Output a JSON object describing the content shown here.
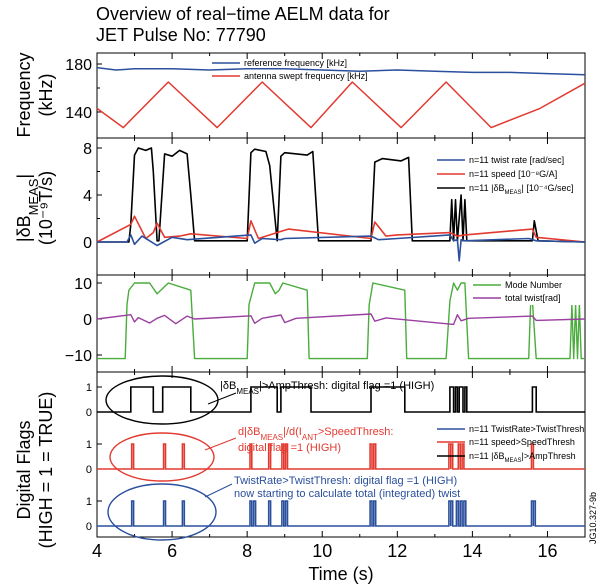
{
  "figure": {
    "title_line1": "Overview of real−time AELM data for",
    "title_line2": "JET Pulse No: 77790",
    "xlabel": "Time (s)",
    "x_ticks": [
      "4",
      "6",
      "8",
      "10",
      "12",
      "14",
      "16"
    ],
    "figure_id": "JG10.327-9b"
  },
  "chart_data": [
    {
      "type": "line",
      "panel": "frequency",
      "ylabel_line1": "Frequency",
      "ylabel_line2": "(kHz)",
      "ylim": [
        120,
        190
      ],
      "y_ticks": [
        "140",
        "180"
      ],
      "series": [
        {
          "name": "reference frequency [kHz]",
          "color": "#2a4f9c",
          "x": [
            4.0,
            4.5,
            5.0,
            6.0,
            7.0,
            8.0,
            9.0,
            10.0,
            11.0,
            12.0,
            13.0,
            14.0,
            15.0,
            16.0,
            17.0
          ],
          "y": [
            177,
            175,
            176,
            176,
            175,
            176,
            176,
            175,
            174,
            175,
            174,
            173,
            173,
            172,
            171
          ]
        },
        {
          "name": "antenna swept frequency [kHz]",
          "color": "#e23a30",
          "x": [
            4.0,
            4.7,
            5.9,
            7.2,
            8.4,
            9.7,
            10.8,
            12.1,
            13.3,
            14.5,
            15.8,
            17.0
          ],
          "y": [
            143,
            127,
            165,
            127,
            165,
            127,
            165,
            127,
            165,
            127,
            143,
            164
          ]
        }
      ]
    },
    {
      "type": "line",
      "panel": "twist",
      "ylabel_line1": "|δB_MEAS|",
      "ylabel_line2": "(10⁻⁹T/s)",
      "ylim": [
        -1.5,
        9
      ],
      "y_ticks": [
        "0",
        "4",
        "8"
      ],
      "series": [
        {
          "name": "n=11 twist rate [rad/sec]",
          "color": "#2a4f9c",
          "x": [
            4.0,
            4.8,
            4.9,
            5.0,
            5.2,
            5.4,
            5.6,
            6.0,
            6.4,
            8.1,
            8.2,
            8.4,
            8.9,
            9.0,
            11.3,
            11.5,
            12.0,
            13.4,
            13.5,
            13.6,
            13.65,
            13.7,
            13.8,
            15.5,
            15.7,
            17.0
          ],
          "y": [
            0,
            0,
            0.6,
            -0.2,
            0.5,
            0.1,
            -0.3,
            0.4,
            0.2,
            0.6,
            -0.1,
            0.3,
            0.2,
            0.3,
            0.5,
            0.2,
            0.3,
            0.6,
            0.1,
            0.2,
            -1.6,
            0.2,
            0.1,
            0.3,
            0.1,
            0
          ]
        },
        {
          "name": "n=11 speed [10⁻⁸G/A]",
          "color": "#e23a30",
          "x": [
            4.0,
            4.9,
            5.0,
            5.3,
            5.5,
            5.6,
            5.8,
            6.2,
            6.5,
            8.0,
            8.1,
            8.3,
            8.9,
            9.1,
            11.3,
            11.4,
            11.7,
            12.0,
            13.4,
            13.6,
            13.8,
            15.6,
            15.7,
            17.0
          ],
          "y": [
            0,
            1.5,
            2.2,
            0.3,
            0.8,
            1.6,
            0.4,
            0.5,
            0.7,
            0.3,
            1.8,
            0.3,
            0.9,
            1.1,
            0.3,
            1.7,
            0.5,
            0.6,
            0.8,
            0.5,
            0.6,
            1.1,
            0.4,
            0
          ]
        },
        {
          "name": "n=11 |δB_MEAS| [10⁻⁴G/sec]",
          "color": "#000000",
          "x": [
            4.0,
            4.85,
            4.9,
            5.0,
            5.1,
            5.3,
            5.45,
            5.5,
            5.6,
            5.65,
            5.8,
            6.0,
            6.2,
            6.4,
            6.5,
            6.6,
            8.0,
            8.1,
            8.2,
            8.5,
            8.6,
            8.8,
            8.9,
            9.0,
            9.6,
            9.75,
            9.9,
            11.3,
            11.4,
            11.6,
            12.1,
            12.3,
            12.4,
            13.4,
            13.45,
            13.5,
            13.55,
            13.6,
            13.7,
            13.75,
            13.8,
            13.85,
            15.6,
            15.65,
            15.75,
            17.0
          ],
          "y": [
            0,
            0,
            1.5,
            7.4,
            8.0,
            7.8,
            8.0,
            6.0,
            0.1,
            0.1,
            7.5,
            7.3,
            7.8,
            7.5,
            4.0,
            0.1,
            0.1,
            7.6,
            7.9,
            7.7,
            6.5,
            0.1,
            7.3,
            7.6,
            7.4,
            7.7,
            0.1,
            0.1,
            6.8,
            7.1,
            6.9,
            7.2,
            0.1,
            0.1,
            3.6,
            0.1,
            3.6,
            0.1,
            4.0,
            0.1,
            3.6,
            0.1,
            0.1,
            1.8,
            0.1,
            0
          ]
        }
      ]
    },
    {
      "type": "line",
      "panel": "mode",
      "ylim": [
        -14,
        13
      ],
      "y_ticks": [
        "10",
        "0",
        "−10"
      ],
      "series": [
        {
          "name": "Mode Number",
          "color": "#4aac3c",
          "x": [
            4.0,
            4.75,
            4.8,
            4.85,
            5.0,
            5.4,
            5.6,
            5.7,
            5.9,
            6.5,
            6.6,
            8.0,
            8.05,
            8.2,
            8.6,
            8.75,
            8.85,
            8.95,
            9.6,
            9.65,
            11.2,
            11.25,
            11.35,
            12.2,
            12.25,
            13.3,
            13.4,
            13.5,
            13.6,
            13.7,
            13.8,
            13.9,
            15.5,
            15.55,
            15.6,
            15.7,
            16.6,
            16.65,
            16.7,
            16.75,
            16.8,
            16.85,
            16.9,
            17.0
          ],
          "y": [
            -11,
            -11,
            4,
            8,
            10,
            10,
            7,
            8,
            10,
            8,
            -11,
            -11,
            4,
            10,
            10,
            7,
            8,
            10,
            8,
            -11,
            -11,
            4,
            10,
            8,
            -11,
            -11,
            5,
            10,
            8,
            10,
            10,
            -11,
            -11,
            4,
            5,
            -11,
            -11,
            4,
            -11,
            4,
            -11,
            4,
            -11,
            -11
          ]
        },
        {
          "name": "total twist[rad]",
          "color": "#9a3fa0",
          "x": [
            4.0,
            4.9,
            5.0,
            5.1,
            5.4,
            5.6,
            5.8,
            6.1,
            6.4,
            6.6,
            8.1,
            8.2,
            8.4,
            8.9,
            9.0,
            9.3,
            11.3,
            11.4,
            11.7,
            13.5,
            13.6,
            13.7,
            13.9,
            15.6,
            15.7,
            17.0
          ],
          "y": [
            0,
            1.2,
            -0.8,
            0.4,
            -1.1,
            0.2,
            1.0,
            -1.3,
            0.8,
            0,
            0.9,
            -1.2,
            0.2,
            1.1,
            -1.0,
            0.2,
            1.4,
            -0.6,
            0.3,
            -1.5,
            1.2,
            -0.5,
            0.2,
            0.8,
            -0.4,
            0
          ]
        }
      ]
    },
    {
      "type": "line",
      "panel": "digital_flags",
      "ylabel_line1": "Digital Flags",
      "ylabel_line2": "(HIGH = 1 = TRUE)",
      "y_ticks": [
        "1",
        "0"
      ],
      "legend": [
        {
          "label": "n=11 TwistRate>TwistThresh",
          "color": "#2a4f9c"
        },
        {
          "label": "n=11 speed>SpeedThresh",
          "color": "#e23a30"
        },
        {
          "label": "n=11 |δB_MEAS|>AmpThresh",
          "color": "#000000"
        }
      ],
      "amp_flag": {
        "color": "#000000",
        "high_intervals": [
          [
            4.9,
            5.5
          ],
          [
            5.75,
            6.5
          ],
          [
            8.1,
            8.8
          ],
          [
            8.9,
            9.7
          ],
          [
            11.3,
            12.2
          ],
          [
            13.4,
            13.5
          ],
          [
            13.55,
            13.6
          ],
          [
            13.65,
            13.75
          ],
          [
            13.8,
            13.85
          ],
          [
            15.6,
            15.7
          ]
        ]
      },
      "speed_flag": {
        "color": "#e23a30",
        "pulses": [
          4.95,
          5.8,
          6.3,
          8.1,
          8.6,
          8.95,
          9.05,
          11.3,
          11.4,
          13.4,
          13.45,
          13.65,
          13.75,
          15.6
        ]
      },
      "twist_flag": {
        "color": "#2a4f9c",
        "pulses": [
          4.95,
          5.8,
          6.3,
          8.1,
          8.2,
          8.6,
          8.95,
          9.05,
          11.3,
          11.4,
          13.4,
          13.45,
          13.6,
          13.7,
          13.8,
          15.6,
          15.65
        ]
      },
      "annotations": [
        {
          "text": "|δB_MEAS|>AmpThresh: digital flag =1 (HIGH)",
          "color": "#000000"
        },
        {
          "text": "d|δB_MEAS|/d(I_ANT>SpeedThresh:",
          "color": "#e23a30"
        },
        {
          "text": "digital flag =1 (HIGH)",
          "color": "#e23a30"
        },
        {
          "text": "TwistRate>TwistThresh: digital flag =1 (HIGH)",
          "color": "#2a4f9c"
        },
        {
          "text": "now starting to calculate total (integrated) twist",
          "color": "#2a4f9c"
        }
      ]
    }
  ]
}
